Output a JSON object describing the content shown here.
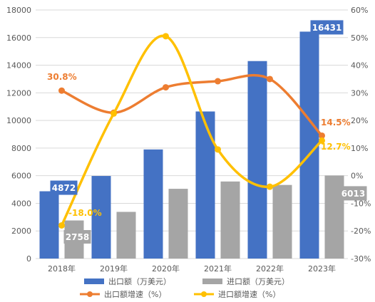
{
  "chart_data": {
    "type": "bar+line",
    "title": "",
    "categories": [
      "2018年",
      "2019年",
      "2020年",
      "2021年",
      "2022年",
      "2023年"
    ],
    "y_left": {
      "min": 0,
      "max": 18000,
      "step": 2000,
      "ticks": [
        "0",
        "2000",
        "4000",
        "6000",
        "8000",
        "10000",
        "12000",
        "14000",
        "16000",
        "18000"
      ]
    },
    "y_right": {
      "min": -30,
      "max": 60,
      "step": 10,
      "ticks": [
        "-30%",
        "-20%",
        "-10%",
        "0%",
        "10%",
        "20%",
        "30%",
        "40%",
        "50%",
        "60%"
      ]
    },
    "grid": true,
    "legend_position": "bottom",
    "bar_series": [
      {
        "name": "出口额（万美元）",
        "color": "#4472C4",
        "values": [
          4872,
          5980,
          7900,
          10650,
          14300,
          16431
        ]
      },
      {
        "name": "进口额（万美元）",
        "color": "#A5A5A5",
        "values": [
          2758,
          3380,
          5050,
          5580,
          5330,
          6013
        ]
      }
    ],
    "line_series": [
      {
        "name": "出口额增速（%）",
        "color": "#ED7D31",
        "values": [
          30.8,
          22.8,
          32.0,
          34.2,
          35.0,
          14.5
        ]
      },
      {
        "name": "进口额增速（%）",
        "color": "#FFC000",
        "values": [
          -18.0,
          22.5,
          50.5,
          9.5,
          -4.0,
          12.7
        ]
      }
    ],
    "data_labels": [
      {
        "text": "4872",
        "style": "box-blue"
      },
      {
        "text": "16431",
        "style": "box-blue"
      },
      {
        "text": "2758",
        "style": "box-gray"
      },
      {
        "text": "6013",
        "style": "box-gray"
      },
      {
        "text": "30.8%",
        "style": "text-orange"
      },
      {
        "text": "14.5%",
        "style": "text-orange"
      },
      {
        "text": "-18.0%",
        "style": "text-yellow"
      },
      {
        "text": "12.7%",
        "style": "text-yellow"
      }
    ]
  }
}
